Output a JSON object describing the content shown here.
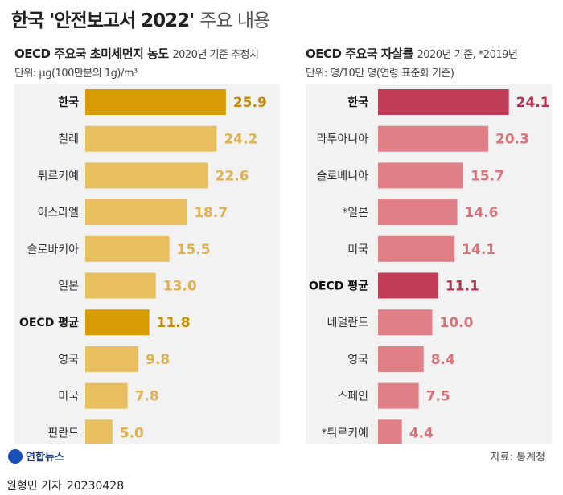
{
  "title_main": "한국 '안전보고서 2022'",
  "title_sub": "주요 내용",
  "chart_data": [
    {
      "type": "bar",
      "title": "OECD 주요국 초미세먼지 농도",
      "note": "2020년 기준 추정치",
      "unit_label": "단위: μg(100만분의 1g)/m³",
      "categories": [
        "한국",
        "칠레",
        "튀르키예",
        "이스라엘",
        "슬로바키아",
        "일본",
        "OECD 평균",
        "영국",
        "미국",
        "핀란드"
      ],
      "values": [
        25.9,
        24.2,
        22.6,
        18.7,
        15.5,
        13.0,
        11.8,
        9.8,
        7.8,
        5.0
      ],
      "value_labels": [
        "25.9",
        "24.2",
        "22.6",
        "18.7",
        "15.5",
        "13.0",
        "11.8",
        "9.8",
        "7.8",
        "5.0"
      ],
      "highlight": [
        "한국",
        "OECD 평균"
      ],
      "color_normal": "#e8be5f",
      "color_highlight": "#d89c06",
      "label_highlight_color": "#c88a00",
      "label_normal_color": "#e0b14c"
    },
    {
      "type": "bar",
      "title": "OECD 주요국 자살률",
      "note": "2020년 기준, *2019년",
      "unit_label": "단위: 명/10만 명(연령 표준화 기준)",
      "categories": [
        "한국",
        "라투아니아",
        "슬로베니아",
        "*일본",
        "미국",
        "OECD 평균",
        "네덜란드",
        "영국",
        "스페인",
        "*튀르키예"
      ],
      "values": [
        24.1,
        20.3,
        15.7,
        14.6,
        14.1,
        11.1,
        10.0,
        8.4,
        7.5,
        4.4
      ],
      "value_labels": [
        "24.1",
        "20.3",
        "15.7",
        "14.6",
        "14.1",
        "11.1",
        "10.0",
        "8.4",
        "7.5",
        "4.4"
      ],
      "highlight": [
        "한국",
        "OECD 평균"
      ],
      "color_normal": "#e07f86",
      "color_highlight": "#c23d58",
      "label_highlight_color": "#b8334f",
      "label_normal_color": "#d9737b"
    }
  ],
  "logo_text": "연합뉴스",
  "source": "자료: 통계청",
  "byline": "원형민 기자",
  "date": "20230428"
}
